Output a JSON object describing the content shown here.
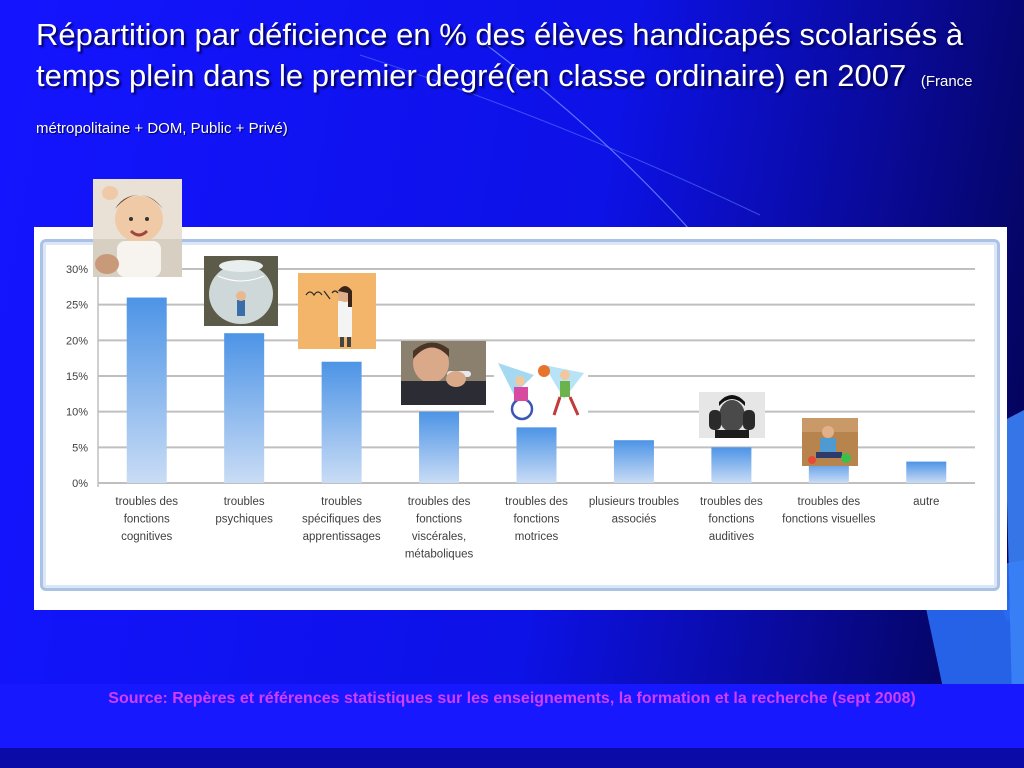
{
  "slide": {
    "title": "Répartition par déficience en % des élèves handicapés scolarisés à temps plein dans le premier degré(en classe ordinaire) en 2007",
    "subtitle": "(France métropolitaine + DOM, Public + Privé)",
    "source": "Source: Repères et références statistiques sur les enseignements, la formation et la recherche (sept 2008)"
  },
  "colors": {
    "title": "#ffffff",
    "source": "#d43cff",
    "bar_top": "#4d94e6",
    "bar_bottom": "#c9dcf5",
    "grid": "#bfbfbf"
  },
  "chart_data": {
    "type": "bar",
    "title": "",
    "xlabel": "",
    "ylabel": "",
    "ylim": [
      0,
      30
    ],
    "yticks": [
      "0%",
      "5%",
      "10%",
      "15%",
      "20%",
      "25%",
      "30%"
    ],
    "grid": true,
    "categories": [
      [
        "troubles des",
        "fonctions",
        "cognitives"
      ],
      [
        "troubles",
        "psychiques"
      ],
      [
        "troubles",
        "spécifiques des",
        "apprentissages"
      ],
      [
        "troubles des",
        "fonctions",
        "viscérales,",
        "métaboliques"
      ],
      [
        "troubles des",
        "fonctions",
        "motrices"
      ],
      [
        "plusieurs troubles",
        "associés"
      ],
      [
        "troubles des",
        "fonctions",
        "auditives"
      ],
      [
        "troubles des",
        "fonctions visuelles"
      ],
      [
        "autre"
      ]
    ],
    "values": [
      26,
      21,
      17,
      10,
      7.8,
      6,
      5,
      3.2,
      3
    ]
  },
  "images": [
    {
      "name": "child-laughing-photo"
    },
    {
      "name": "child-in-glass-jar-photo"
    },
    {
      "name": "child-writing-on-wall-photo"
    },
    {
      "name": "boy-with-dropper-photo"
    },
    {
      "name": "wheelchair-children-playing-drawing"
    },
    {
      "name": "child-covering-ears-photo"
    },
    {
      "name": "child-playing-on-floor-photo"
    }
  ]
}
